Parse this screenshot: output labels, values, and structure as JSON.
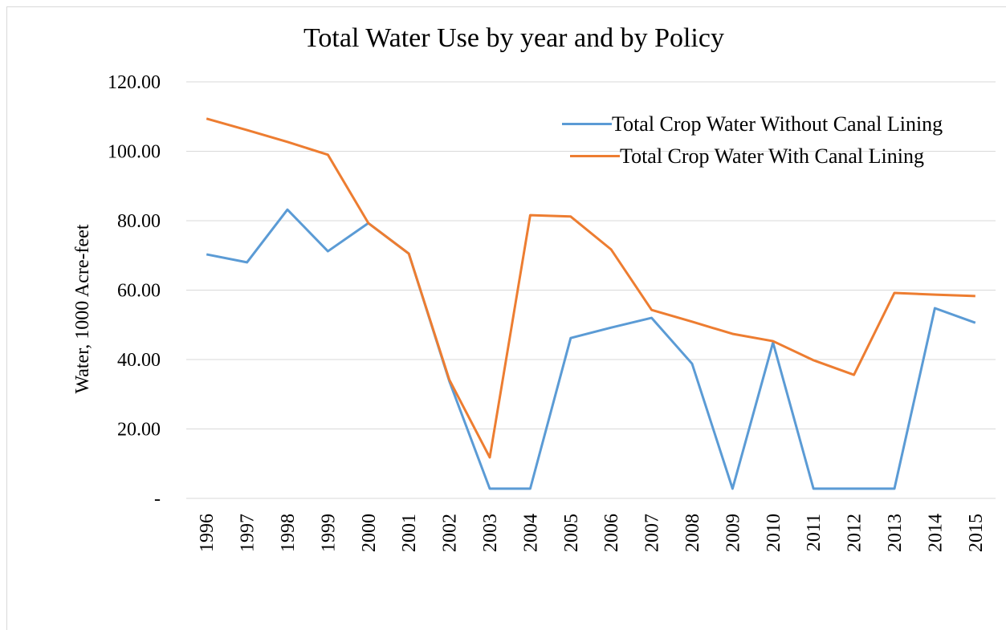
{
  "chart_data": {
    "type": "line",
    "title": "Total Water Use by year and by Policy",
    "y_label": "Water, 1000 Acre-feet",
    "categories": [
      "1996",
      "1997",
      "1998",
      "1999",
      "2000",
      "2001",
      "2002",
      "2003",
      "2004",
      "2005",
      "2006",
      "2007",
      "2008",
      "2009",
      "2010",
      "2011",
      "2012",
      "2013",
      "2014",
      "2015"
    ],
    "series": [
      {
        "name": "Total Crop Water Without Canal Lining",
        "color": "#5b9bd5",
        "values": [
          70.3,
          68.0,
          83.2,
          71.2,
          79.3,
          70.5,
          33.8,
          2.8,
          2.8,
          46.2,
          49.2,
          52.0,
          38.8,
          2.8,
          44.9,
          2.8,
          2.8,
          2.8,
          54.8,
          50.6
        ]
      },
      {
        "name": "Total Crop Water With Canal Lining",
        "color": "#ed7d31",
        "values": [
          109.4,
          106.1,
          102.7,
          99.0,
          79.3,
          70.5,
          34.2,
          11.8,
          81.6,
          81.2,
          71.7,
          54.3,
          50.9,
          47.4,
          45.3,
          39.8,
          35.6,
          59.2,
          58.7,
          58.3
        ]
      }
    ],
    "ylim": [
      0,
      120
    ],
    "yticks": [
      {
        "value": 0,
        "label": "-"
      },
      {
        "value": 20,
        "label": "20.00"
      },
      {
        "value": 40,
        "label": "40.00"
      },
      {
        "value": 60,
        "label": "60.00"
      },
      {
        "value": 80,
        "label": "80.00"
      },
      {
        "value": 100,
        "label": "100.00"
      },
      {
        "value": 120,
        "label": "120.00"
      }
    ],
    "grid": true,
    "legend": "top-right"
  }
}
